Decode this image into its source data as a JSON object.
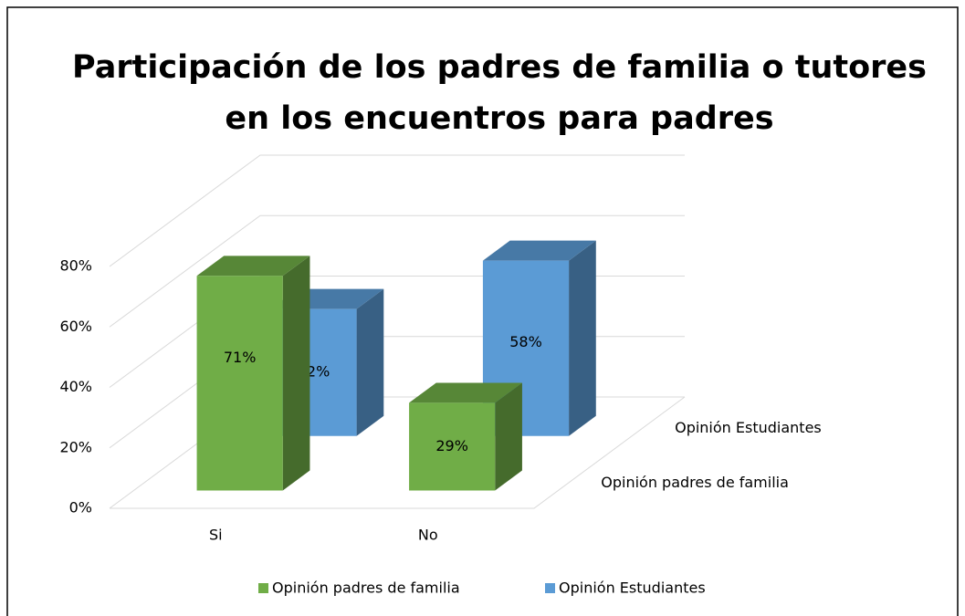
{
  "chart_data": {
    "type": "bar3d",
    "title": [
      "Participación de los padres de familia o tutores",
      "en los encuentros para padres"
    ],
    "categories": [
      "Si",
      "No"
    ],
    "series": [
      {
        "name": "Opinión padres de familia",
        "color": "#70ad47",
        "values": [
          71,
          29
        ],
        "value_labels": [
          "71%",
          "29%"
        ]
      },
      {
        "name": "Opinión Estudiantes",
        "color": "#5b9bd5",
        "values": [
          42,
          58
        ],
        "value_labels": [
          "42%",
          "58%"
        ]
      }
    ],
    "ylim": [
      0,
      80
    ],
    "yticks": [
      {
        "value": 0,
        "label": "0%"
      },
      {
        "value": 20,
        "label": "20%"
      },
      {
        "value": 40,
        "label": "40%"
      },
      {
        "value": 60,
        "label": "60%"
      },
      {
        "value": 80,
        "label": "80%"
      }
    ],
    "grid": true,
    "legend": "bottom"
  }
}
